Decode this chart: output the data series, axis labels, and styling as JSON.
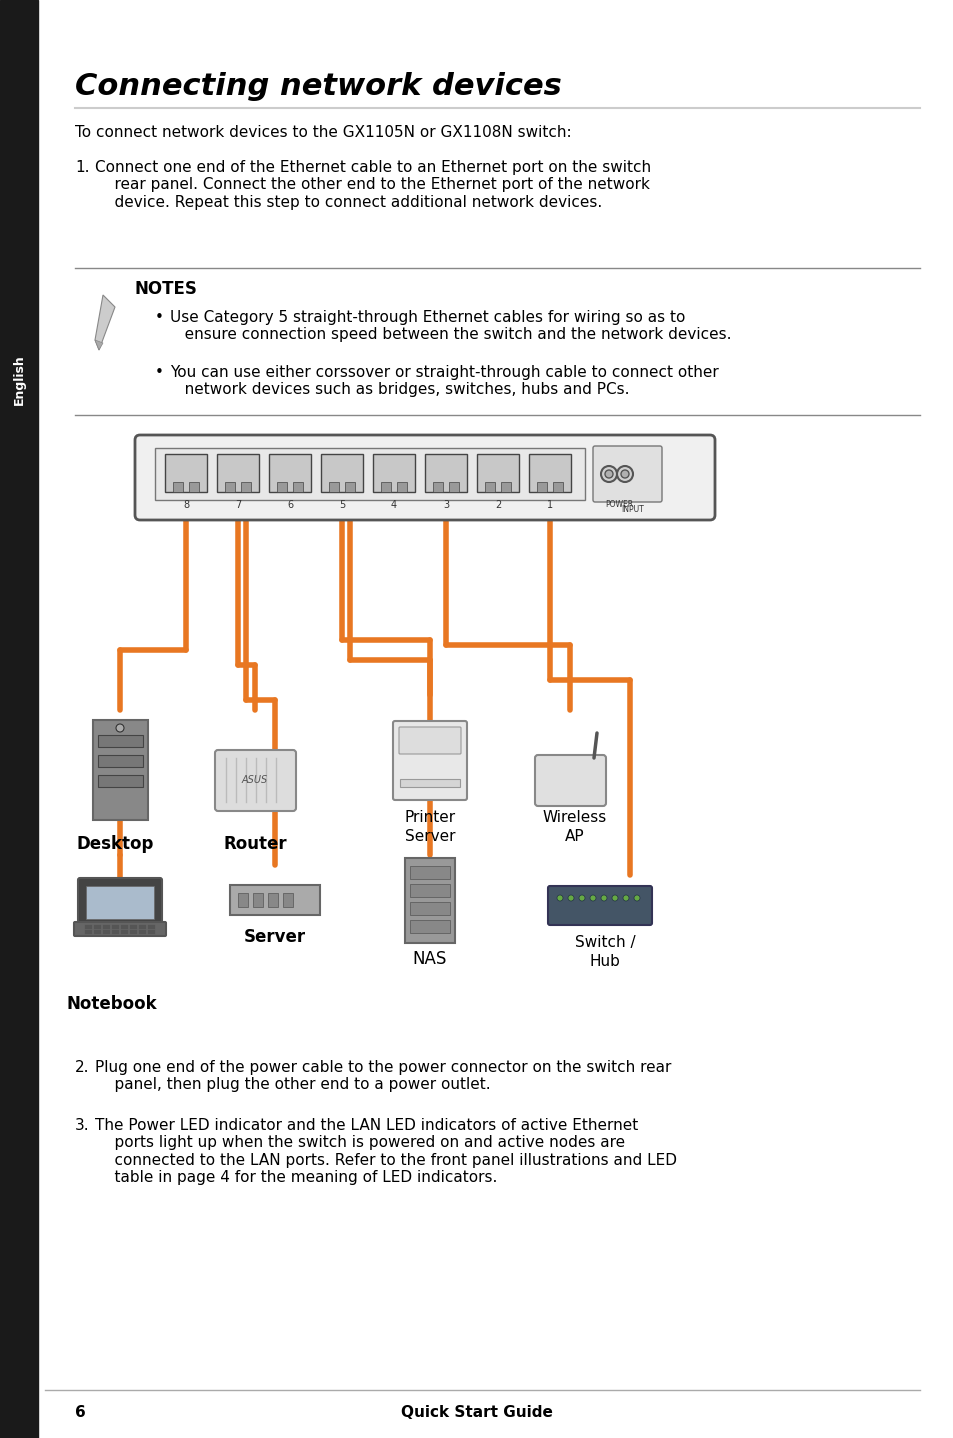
{
  "title": "Connecting network devices",
  "bg_color": "#ffffff",
  "text_color": "#000000",
  "orange_color": "#E87722",
  "sidebar_color": "#1a1a1a",
  "sidebar_text": "English",
  "intro_text": "To connect network devices to the GX1105N or GX1108N switch:",
  "step1_text": "Connect one end of the Ethernet cable to an Ethernet port on the switch\n    rear panel. Connect the other end to the Ethernet port of the network\n    device. Repeat this step to connect additional network devices.",
  "notes_title": "NOTES",
  "note1": "Use Category 5 straight-through Ethernet cables for wiring so as to\n          ensure connection speed between the switch and the network devices.",
  "note2": "You can use either corssover or straight-through cable to connect other\n          network devices such as bridges, switches, hubs and PCs.",
  "step2_text": "Plug one end of the power cable to the power connector on the switch rear\n    panel, then plug the other end to a power outlet.",
  "step3_text": "The Power LED indicator and the LAN LED indicators of active Ethernet\n    ports light up when the switch is powered on and active nodes are\n    connected to the LAN ports. Refer to the front panel illustrations and LED\n    table in page 4 for the meaning of LED indicators.",
  "footer_text": "Quick Start Guide",
  "page_number": "6",
  "device_labels": [
    "Desktop",
    "Router",
    "Printer\nServer",
    "Wireless\nAP",
    "Server",
    "NAS",
    "Switch /\nHub",
    "Notebook"
  ]
}
